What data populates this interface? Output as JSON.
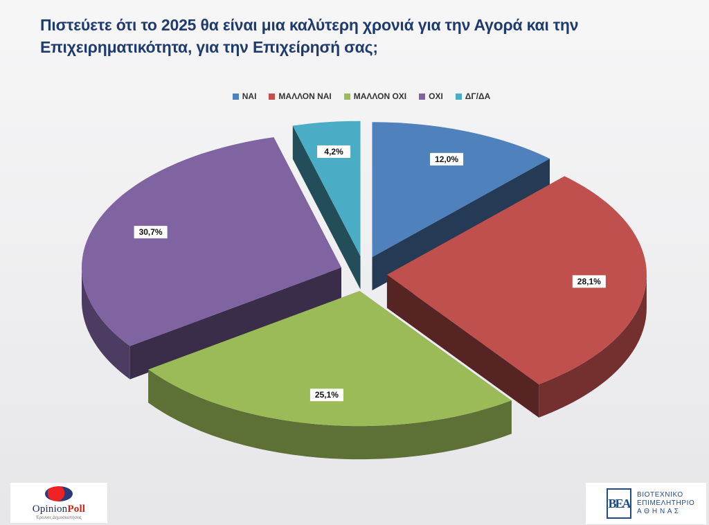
{
  "title": {
    "line1": "Πιστεύετε ότι το 2025 θα είναι μια καλύτερη χρονιά για την Αγορά και την",
    "line2": "Επιχειρηματικότητα, για την Επιχείρησή σας;"
  },
  "chart_data": {
    "type": "pie",
    "style": "3d-exploded",
    "legend_position": "top",
    "categories": [
      "ΝΑΙ",
      "ΜΑΛΛΟΝ ΝΑΙ",
      "ΜΑΛΛΟΝ ΟΧΙ",
      "ΟΧΙ",
      "ΔΓ/ΔΑ"
    ],
    "values": [
      12.0,
      28.1,
      25.1,
      30.7,
      4.2
    ],
    "labels": [
      "12,0%",
      "28,1%",
      "25,1%",
      "30,7%",
      "4,2%"
    ],
    "colors": [
      "#4f81bd",
      "#c0504d",
      "#9bbb59",
      "#8064a2",
      "#4bacc6"
    ]
  },
  "logos": {
    "left": {
      "name_part1": "Opinion",
      "name_part2": "Poll",
      "tagline": "Έρευνες Δημοσκοπήσεις"
    },
    "right": {
      "emblem": "ΒΕΑ",
      "line1": "ΒΙΟΤΕΧΝΙΚΟ",
      "line2": "ΕΠΙΜΕΛΗΤΗΡΙΟ",
      "line3": "Α Θ Η Ν Α Σ"
    }
  }
}
